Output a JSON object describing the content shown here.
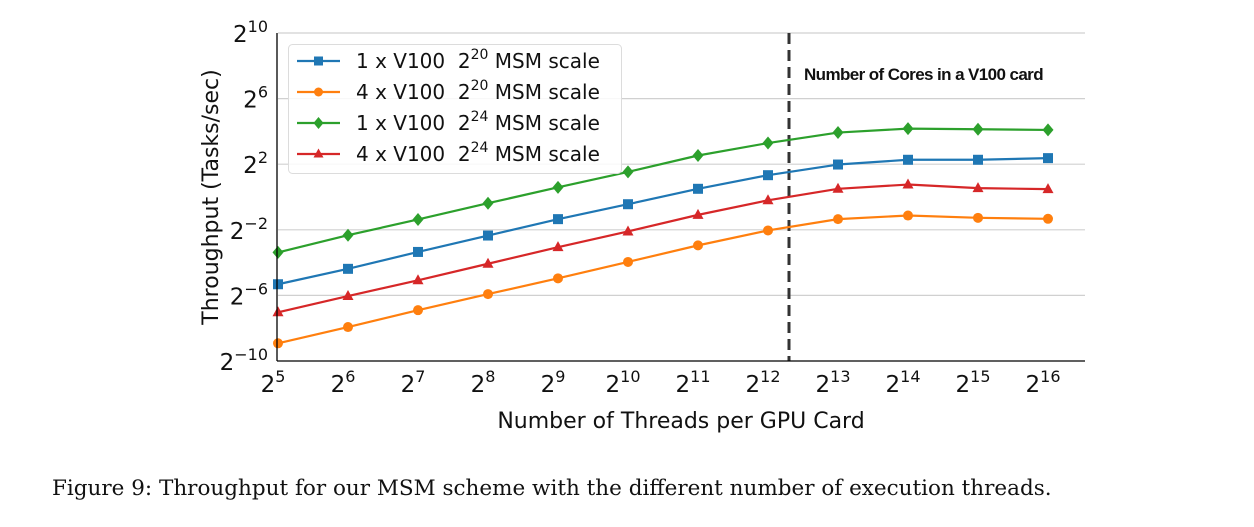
{
  "chart_data": {
    "type": "line",
    "title": "",
    "xlabel": "Number of Threads per GPU Card",
    "ylabel": "Throughput (Tasks/sec)",
    "x_scale": "log2",
    "y_scale": "log2",
    "x": [
      5,
      6,
      7,
      8,
      9,
      10,
      11,
      12,
      13,
      14,
      15,
      16
    ],
    "x_tick_labels": [
      {
        "base": "2",
        "exp": "5"
      },
      {
        "base": "2",
        "exp": "6"
      },
      {
        "base": "2",
        "exp": "7"
      },
      {
        "base": "2",
        "exp": "8"
      },
      {
        "base": "2",
        "exp": "9"
      },
      {
        "base": "2",
        "exp": "10"
      },
      {
        "base": "2",
        "exp": "11"
      },
      {
        "base": "2",
        "exp": "12"
      },
      {
        "base": "2",
        "exp": "13"
      },
      {
        "base": "2",
        "exp": "14"
      },
      {
        "base": "2",
        "exp": "15"
      },
      {
        "base": "2",
        "exp": "16"
      }
    ],
    "y_ticks": [
      -10,
      -6,
      -2,
      2,
      6,
      10
    ],
    "y_tick_labels": [
      {
        "base": "2",
        "exp": "−10"
      },
      {
        "base": "2",
        "exp": "−6"
      },
      {
        "base": "2",
        "exp": "−2"
      },
      {
        "base": "2",
        "exp": "2"
      },
      {
        "base": "2",
        "exp": "6"
      },
      {
        "base": "2",
        "exp": "10"
      }
    ],
    "xlim_exp": [
      5,
      16
    ],
    "ylim_exp": [
      -10,
      10
    ],
    "grid": "horizontal",
    "legend_position": "top-left",
    "series": [
      {
        "name": "1 x V100  2^20 MSM scale",
        "label_prefix": "1 x V100",
        "label_base": "2",
        "label_exp": "20",
        "label_suffix": "MSM scale",
        "color": "#1f77b4",
        "marker": "square",
        "values_log2": [
          -5.32,
          -4.38,
          -3.35,
          -2.35,
          -1.35,
          -0.44,
          0.5,
          1.33,
          1.98,
          2.27,
          2.27,
          2.37
        ]
      },
      {
        "name": "4 x V100  2^20 MSM scale",
        "label_prefix": "4 x V100",
        "label_base": "2",
        "label_exp": "20",
        "label_suffix": "MSM scale",
        "color": "#ff7f0e",
        "marker": "circle",
        "values_log2": [
          -8.92,
          -7.93,
          -6.9,
          -5.92,
          -4.96,
          -3.96,
          -2.95,
          -2.04,
          -1.35,
          -1.13,
          -1.27,
          -1.33
        ]
      },
      {
        "name": "1 x V100  2^24 MSM scale",
        "label_prefix": "1 x V100",
        "label_base": "2",
        "label_exp": "24",
        "label_suffix": "MSM scale",
        "color": "#2ca02c",
        "marker": "diamond",
        "values_log2": [
          -3.38,
          -2.33,
          -1.37,
          -0.38,
          0.59,
          1.53,
          2.53,
          3.29,
          3.93,
          4.17,
          4.13,
          4.09
        ]
      },
      {
        "name": "4 x V100  2^24 MSM scale",
        "label_prefix": "4 x V100",
        "label_base": "2",
        "label_exp": "24",
        "label_suffix": "MSM scale",
        "color": "#d62728",
        "marker": "triangle",
        "values_log2": [
          -7.03,
          -6.04,
          -5.08,
          -4.07,
          -3.06,
          -2.1,
          -1.09,
          -0.2,
          0.5,
          0.76,
          0.54,
          0.48
        ]
      }
    ],
    "vline": {
      "x_exp": 12.3,
      "style": "dashed",
      "color": "#333333",
      "label": "Number of Cores in a V100 card"
    }
  },
  "caption": "Figure 9: Throughput for our MSM scheme with the different number of execution threads."
}
